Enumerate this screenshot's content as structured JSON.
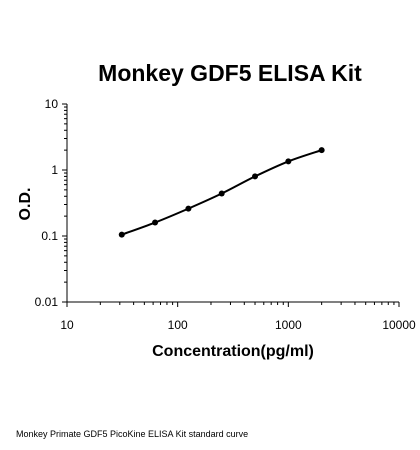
{
  "chart_data": {
    "type": "line",
    "title": "Monkey GDF5 ELISA Kit",
    "xlabel": "Concentration(pg/ml)",
    "ylabel": "O.D.",
    "xscale": "log",
    "yscale": "log",
    "xlim": [
      10,
      10000
    ],
    "ylim": [
      0.01,
      10
    ],
    "x_ticks": [
      10,
      100,
      1000,
      10000
    ],
    "x_tick_labels": [
      "10",
      "100",
      "1000",
      "10000"
    ],
    "y_ticks": [
      0.01,
      0.1,
      1,
      10
    ],
    "y_tick_labels": [
      "0.01",
      "0.1",
      "1",
      "10"
    ],
    "grid": false,
    "legend": "none",
    "series": [
      {
        "x": [
          31.25,
          62.5,
          125,
          250,
          500,
          1000,
          2000
        ],
        "y": [
          0.105,
          0.16,
          0.26,
          0.44,
          0.8,
          1.35,
          2.0
        ],
        "color": "#000000",
        "marker": "circle"
      }
    ]
  },
  "caption": "Monkey Primate GDF5 PicoKine ELISA Kit standard curve"
}
